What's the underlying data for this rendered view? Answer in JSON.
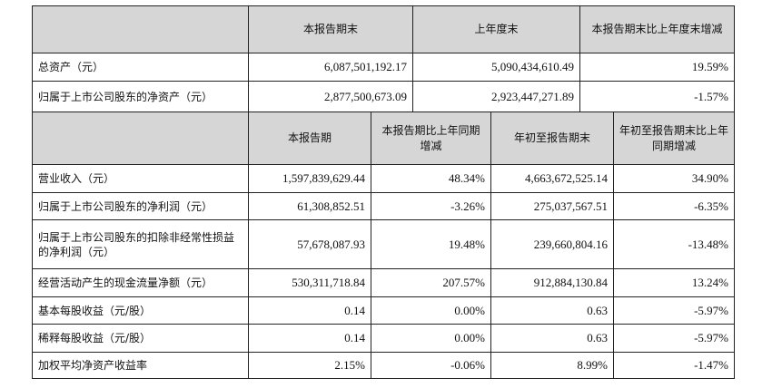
{
  "balance": {
    "headers": [
      "本报告期末",
      "上年度末",
      "本报告期末比上年度末增减"
    ],
    "rows": [
      {
        "label": "总资产（元）",
        "values": [
          "6,087,501,192.17",
          "5,090,434,610.49",
          "19.59%"
        ]
      },
      {
        "label": "归属于上市公司股东的净资产（元）",
        "values": [
          "2,877,500,673.09",
          "2,923,447,271.89",
          "-1.57%"
        ]
      }
    ]
  },
  "income": {
    "headers": [
      "本报告期",
      "本报告期比上年同期增减",
      "年初至报告期末",
      "年初至报告期末比上年同期增减"
    ],
    "rows": [
      {
        "label": "营业收入（元）",
        "values": [
          "1,597,839,629.44",
          "48.34%",
          "4,663,672,525.14",
          "34.90%"
        ]
      },
      {
        "label": "归属于上市公司股东的净利润（元）",
        "values": [
          "61,308,852.51",
          "-3.26%",
          "275,037,567.51",
          "-6.35%"
        ]
      },
      {
        "label": "归属于上市公司股东的扣除非经常性损益的净利润（元）",
        "values": [
          "57,678,087.93",
          "19.48%",
          "239,660,804.16",
          "-13.48%"
        ]
      },
      {
        "label": "经营活动产生的现金流量净额（元）",
        "values": [
          "530,311,718.84",
          "207.57%",
          "912,884,130.84",
          "13.24%"
        ]
      },
      {
        "label": "基本每股收益（元/股）",
        "values": [
          "0.14",
          "0.00%",
          "0.63",
          "-5.97%"
        ]
      },
      {
        "label": "稀释每股收益（元/股）",
        "values": [
          "0.14",
          "0.00%",
          "0.63",
          "-5.97%"
        ]
      },
      {
        "label": "加权平均净资产收益率",
        "values": [
          "2.15%",
          "-0.06%",
          "8.99%",
          "-1.47%"
        ]
      }
    ]
  }
}
